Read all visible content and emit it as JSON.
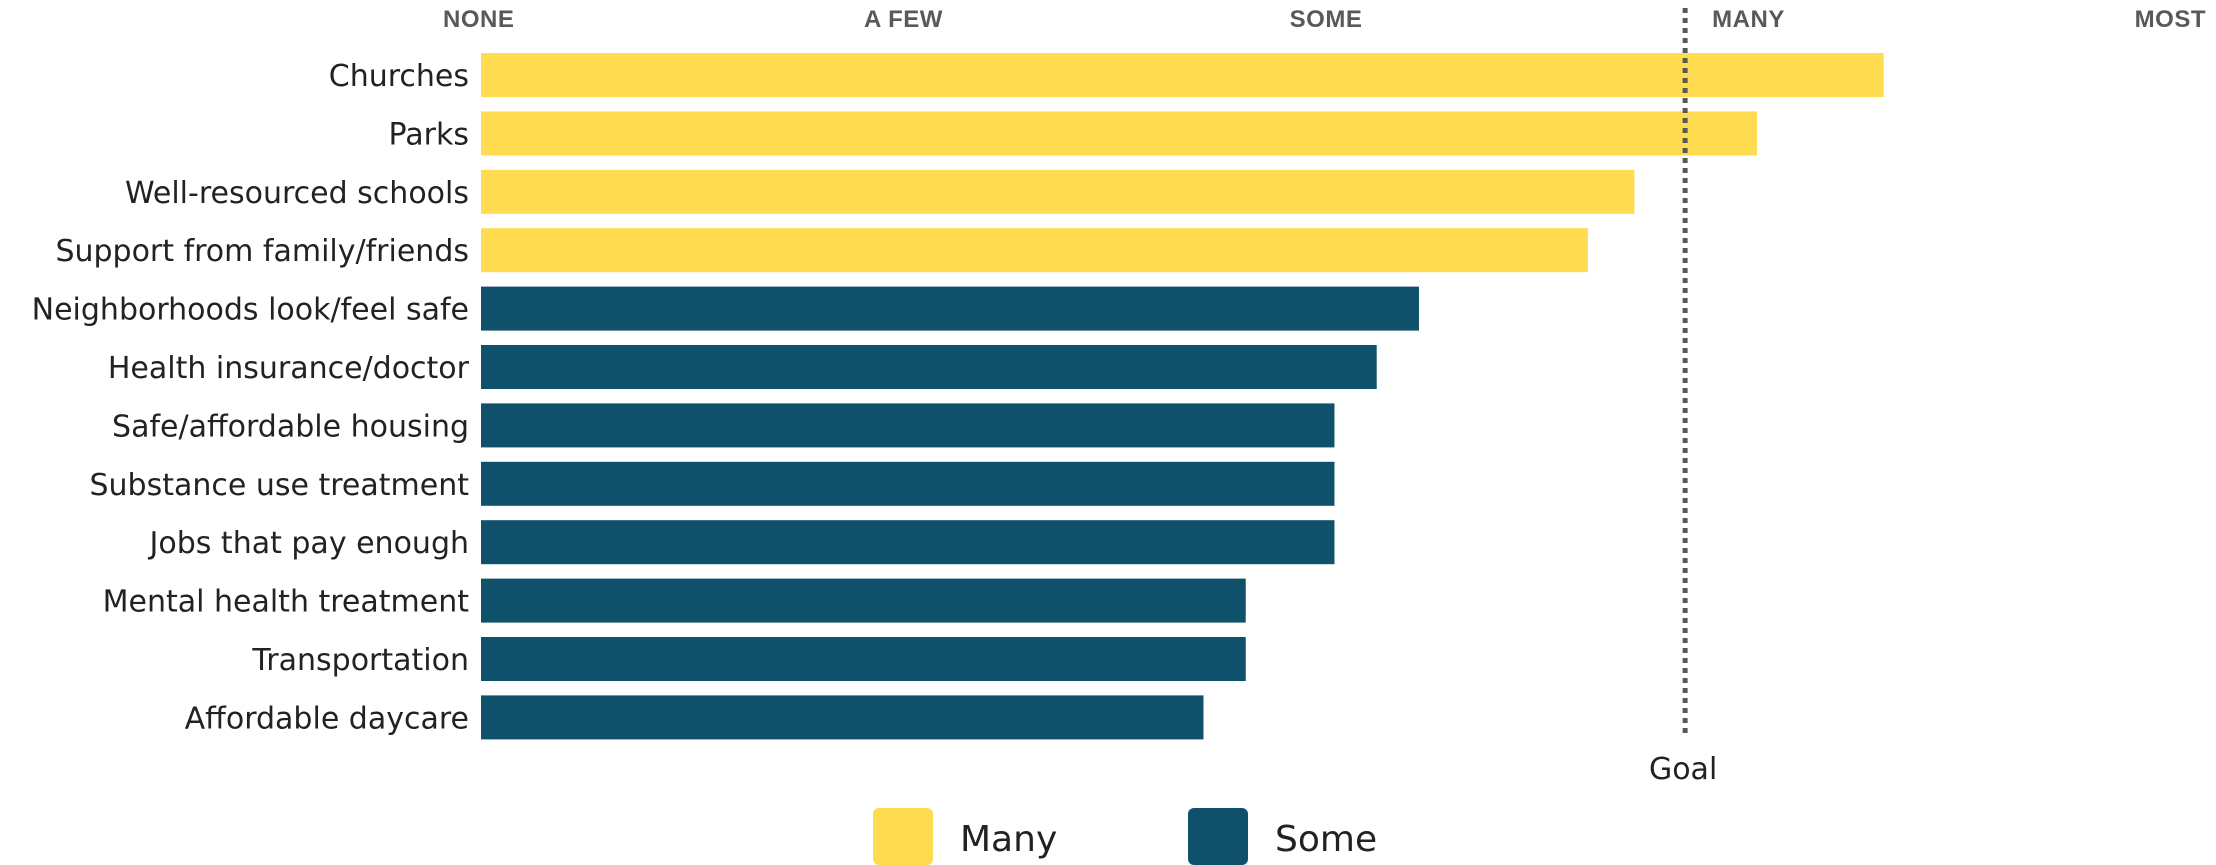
{
  "chart_data": {
    "type": "bar",
    "orientation": "horizontal",
    "title": "",
    "xlabel": "",
    "ylabel": "",
    "x_ticks": [
      "NONE",
      "A FEW",
      "SOME",
      "MANY",
      "MOST"
    ],
    "xlim": [
      0,
      4
    ],
    "categories": [
      "Churches",
      "Parks",
      "Well-resourced schools",
      "Support from family/friends",
      "Neighborhoods look/feel safe",
      "Health insurance/doctor",
      "Safe/affordable housing",
      "Substance use treatment",
      "Jobs that pay enough",
      "Mental health treatment",
      "Transportation",
      "Affordable daycare"
    ],
    "values": [
      3.32,
      3.02,
      2.73,
      2.62,
      2.22,
      2.12,
      2.02,
      2.02,
      2.02,
      1.81,
      1.81,
      1.71
    ],
    "groups": [
      "Many",
      "Many",
      "Many",
      "Many",
      "Some",
      "Some",
      "Some",
      "Some",
      "Some",
      "Some",
      "Some",
      "Some"
    ],
    "goal": {
      "value": 2.85,
      "label": "Goal"
    },
    "legend": {
      "position": "bottom",
      "items": [
        {
          "name": "Many",
          "color": "#FFDB4F"
        },
        {
          "name": "Some",
          "color": "#0F506B"
        }
      ]
    },
    "grid": false
  }
}
